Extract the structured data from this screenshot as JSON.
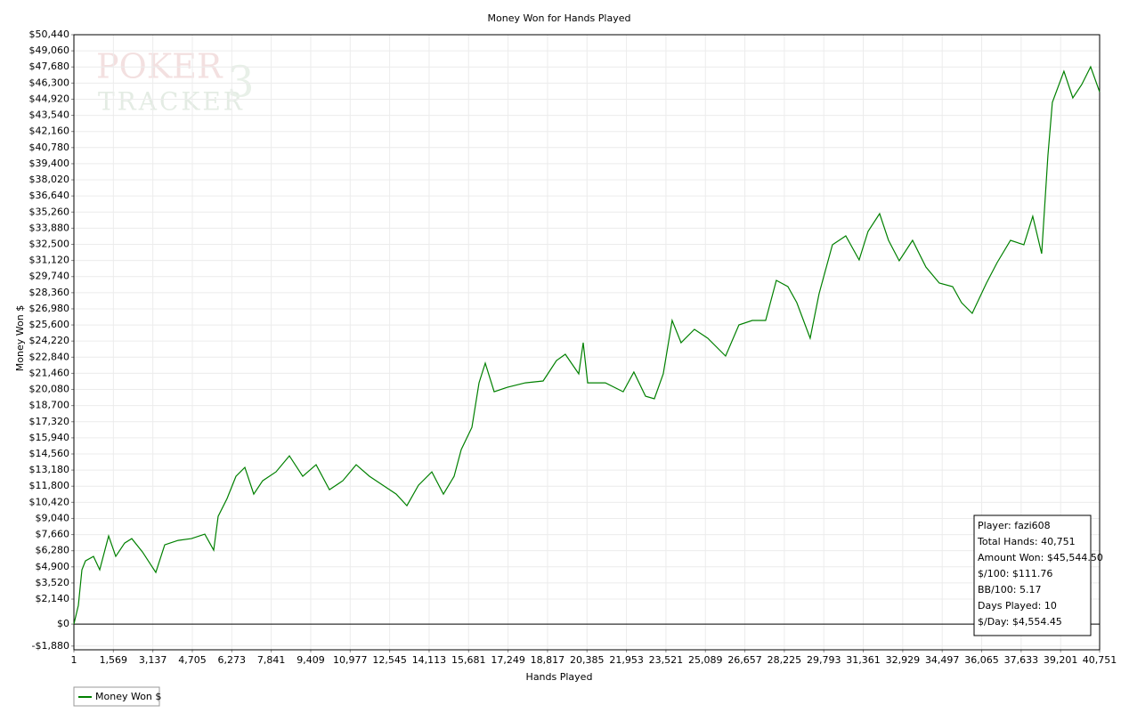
{
  "chart_data": {
    "type": "line",
    "title": "Money Won for Hands Played",
    "xlabel": "Hands Played",
    "ylabel": "Money Won $",
    "watermark": [
      "POKER",
      "TRACKER",
      "3"
    ],
    "annotations": [
      "Player: fazi608",
      "Total Hands: 40,751",
      "Amount Won: $45,544.50",
      "$/100: $111.76",
      "BB/100: 5.17",
      "Days Played: 10",
      "$/Day: $4,554.45"
    ],
    "x": [
      1,
      178,
      319,
      461,
      779,
      1027,
      1381,
      1663,
      2017,
      2300,
      2724,
      3255,
      3609,
      4139,
      4670,
      5200,
      5554,
      5731,
      6085,
      6438,
      6792,
      7146,
      7500,
      8031,
      8561,
      9092,
      9622,
      10153,
      10683,
      11214,
      11744,
      12275,
      12805,
      13229,
      13689,
      14220,
      14680,
      15104,
      15387,
      15812,
      16095,
      16342,
      16696,
      17226,
      17934,
      18641,
      19172,
      19525,
      20056,
      20233,
      20410,
      21117,
      21824,
      22249,
      22709,
      23062,
      23416,
      23770,
      24123,
      24654,
      25184,
      25892,
      26422,
      26953,
      27484,
      27908,
      28368,
      28721,
      29252,
      29606,
      30136,
      30667,
      31197,
      31551,
      32011,
      32365,
      32789,
      33320,
      33850,
      34381,
      34911,
      35265,
      35689,
      36255,
      36680,
      37210,
      37741,
      38095,
      38448,
      38696,
      38873,
      39333,
      39686,
      40040,
      40394,
      40751
    ],
    "series": [
      {
        "name": "Money Won $",
        "color": "#008000",
        "values": [
          0,
          1600,
          4648,
          5410,
          5791,
          4648,
          7544,
          5791,
          6934,
          7315,
          6172,
          4420,
          6782,
          7163,
          7315,
          7696,
          6325,
          9220,
          10744,
          12649,
          13411,
          11125,
          12268,
          13030,
          14402,
          12649,
          13640,
          11506,
          12268,
          13640,
          12649,
          11887,
          11125,
          10135,
          11887,
          13030,
          11125,
          12649,
          14935,
          16840,
          20650,
          22327,
          19888,
          20269,
          20650,
          20803,
          22555,
          23089,
          21412,
          24079,
          20650,
          20650,
          19888,
          21565,
          19507,
          19279,
          21412,
          25984,
          24079,
          25222,
          24460,
          22936,
          25603,
          25984,
          25984,
          29413,
          28880,
          27508,
          24460,
          28270,
          32461,
          33223,
          31166,
          33604,
          35128,
          32842,
          31090,
          32842,
          30556,
          29185,
          28880,
          27508,
          26594,
          29185,
          30937,
          32842,
          32461,
          34900,
          31699,
          40081,
          44653,
          47320,
          45034,
          46177,
          47701,
          45544
        ]
      }
    ],
    "xlim": [
      1,
      40751
    ],
    "ylim": [
      -2200,
      50440
    ],
    "xticks": [
      1,
      {
        "value": 1569,
        "label": "1,569"
      },
      {
        "value": 3137,
        "label": "3,137"
      },
      {
        "value": 4705,
        "label": "4,705"
      },
      {
        "value": 6273,
        "label": "6,273"
      },
      {
        "value": 7841,
        "label": "7,841"
      },
      {
        "value": 9409,
        "label": "9,409"
      },
      {
        "value": 10977,
        "label": "10,977"
      },
      {
        "value": 12545,
        "label": "12,545"
      },
      {
        "value": 14113,
        "label": "14,113"
      },
      {
        "value": 15681,
        "label": "15,681"
      },
      {
        "value": 17249,
        "label": "17,249"
      },
      {
        "value": 18817,
        "label": "18,817"
      },
      {
        "value": 20385,
        "label": "20,385"
      },
      {
        "value": 21953,
        "label": "21,953"
      },
      {
        "value": 23521,
        "label": "23,521"
      },
      {
        "value": 25089,
        "label": "25,089"
      },
      {
        "value": 26657,
        "label": "26,657"
      },
      {
        "value": 28225,
        "label": "28,225"
      },
      {
        "value": 29793,
        "label": "29,793"
      },
      {
        "value": 31361,
        "label": "31,361"
      },
      {
        "value": 32929,
        "label": "32,929"
      },
      {
        "value": 34497,
        "label": "34,497"
      },
      {
        "value": 36065,
        "label": "36,065"
      },
      {
        "value": 37633,
        "label": "37,633"
      },
      {
        "value": 39201,
        "label": "39,201"
      },
      {
        "value": 40751,
        "label": "40,751"
      }
    ],
    "yticks": [
      {
        "value": -1880,
        "label": "-$1,880"
      },
      {
        "value": 0,
        "label": "$0"
      },
      {
        "value": 2140,
        "label": "$2,140"
      },
      {
        "value": 3520,
        "label": "$3,520"
      },
      {
        "value": 4900,
        "label": "$4,900"
      },
      {
        "value": 6280,
        "label": "$6,280"
      },
      {
        "value": 7660,
        "label": "$7,660"
      },
      {
        "value": 9040,
        "label": "$9,040"
      },
      {
        "value": 10420,
        "label": "$10,420"
      },
      {
        "value": 11800,
        "label": "$11,800"
      },
      {
        "value": 13180,
        "label": "$13,180"
      },
      {
        "value": 14560,
        "label": "$14,560"
      },
      {
        "value": 15940,
        "label": "$15,940"
      },
      {
        "value": 17320,
        "label": "$17,320"
      },
      {
        "value": 18700,
        "label": "$18,700"
      },
      {
        "value": 20080,
        "label": "$20,080"
      },
      {
        "value": 21460,
        "label": "$21,460"
      },
      {
        "value": 22840,
        "label": "$22,840"
      },
      {
        "value": 24220,
        "label": "$24,220"
      },
      {
        "value": 25600,
        "label": "$25,600"
      },
      {
        "value": 26980,
        "label": "$26,980"
      },
      {
        "value": 28360,
        "label": "$28,360"
      },
      {
        "value": 29740,
        "label": "$29,740"
      },
      {
        "value": 31120,
        "label": "$31,120"
      },
      {
        "value": 32500,
        "label": "$32,500"
      },
      {
        "value": 33880,
        "label": "$33,880"
      },
      {
        "value": 35260,
        "label": "$35,260"
      },
      {
        "value": 36640,
        "label": "$36,640"
      },
      {
        "value": 38020,
        "label": "$38,020"
      },
      {
        "value": 39400,
        "label": "$39,400"
      },
      {
        "value": 40780,
        "label": "$40,780"
      },
      {
        "value": 42160,
        "label": "$42,160"
      },
      {
        "value": 43540,
        "label": "$43,540"
      },
      {
        "value": 44920,
        "label": "$44,920"
      },
      {
        "value": 46300,
        "label": "$46,300"
      },
      {
        "value": 47680,
        "label": "$47,680"
      },
      {
        "value": 49060,
        "label": "$49,060"
      },
      {
        "value": 50440,
        "label": "$50,440"
      }
    ],
    "grid": true,
    "legend": "bottom-left"
  }
}
